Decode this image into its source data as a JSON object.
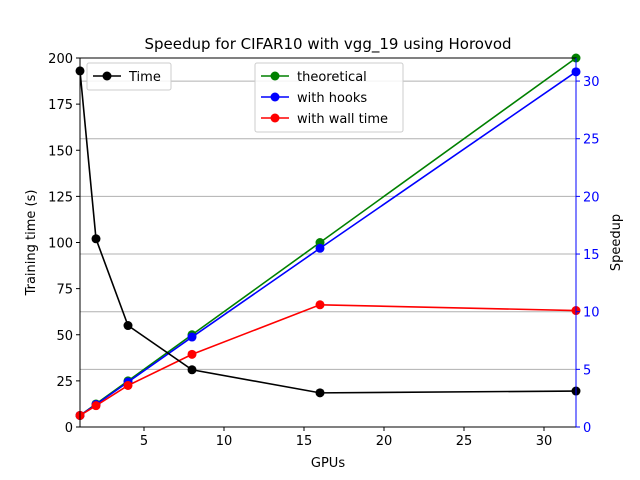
{
  "chart_data": {
    "type": "line",
    "title": "Speedup for CIFAR10 with vgg_19 using Horovod",
    "xlabel": "GPUs",
    "ylabel_left": "Training time (s)",
    "ylabel_right": "Speedup",
    "xlim": [
      1,
      32
    ],
    "ylim_left": [
      0,
      200
    ],
    "ylim_right": [
      0,
      32
    ],
    "x_ticks": [
      5,
      10,
      15,
      20,
      25,
      30
    ],
    "y_ticks_left": [
      0,
      25,
      50,
      75,
      100,
      125,
      150,
      175,
      200
    ],
    "y_ticks_right": [
      0,
      5,
      10,
      15,
      20,
      25,
      30
    ],
    "grid": "horizontal (right axis)",
    "x": [
      1,
      2,
      4,
      8,
      16,
      32
    ],
    "left_series": [
      {
        "name": "Time",
        "color": "#000000",
        "values": [
          193,
          102,
          55,
          31,
          18.5,
          19.5
        ]
      }
    ],
    "right_series": [
      {
        "name": "theoretical",
        "color": "#008000",
        "values": [
          1,
          2,
          4,
          8,
          16,
          32
        ]
      },
      {
        "name": "with hooks",
        "color": "#0000ff",
        "values": [
          1,
          1.95,
          3.9,
          7.8,
          15.5,
          30.8
        ]
      },
      {
        "name": "with wall time",
        "color": "#ff0000",
        "values": [
          1,
          1.85,
          3.6,
          6.3,
          10.6,
          10.1
        ]
      }
    ],
    "legend_left_position": "top-left",
    "legend_right_position": "top-center"
  }
}
